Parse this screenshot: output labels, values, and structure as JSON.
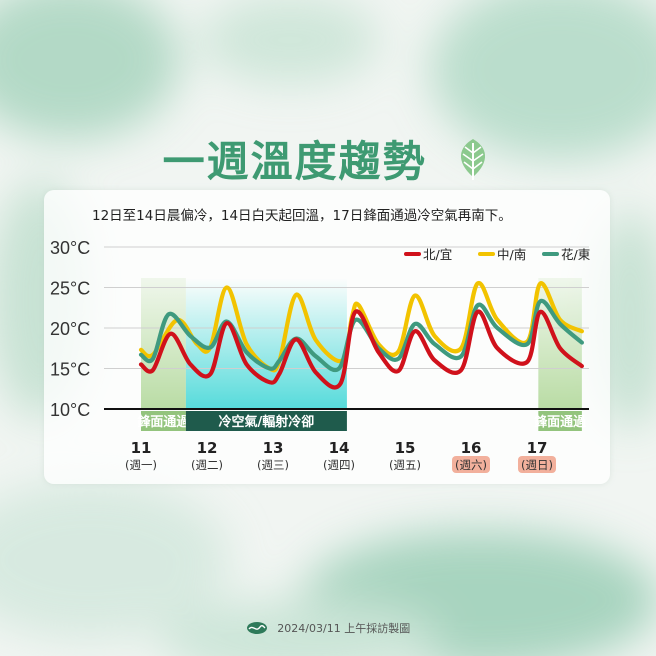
{
  "title": "一週溫度趨勢",
  "subtitle": "12日至14日晨偏冷，14日白天起回溫，17日鋒面通過冷空氣再南下。",
  "footer": {
    "text": "2024/03/11 上午採訪製圖"
  },
  "colors": {
    "north": "#d0111b",
    "central": "#f2c300",
    "east": "#3f9a7f",
    "accent": "#3e9a72",
    "front": "#a9d48f",
    "cold": "#39d5d5",
    "cold_band": "#1f5b4c",
    "weekend": "#f2b09c"
  },
  "bands": [
    {
      "label": "鋒面通過",
      "from": 11,
      "to": 11.68
    },
    {
      "label": "冷空氣/輻射冷卻",
      "from": 11.68,
      "to": 14.12
    },
    {
      "label": "鋒面通過",
      "from": 17.02,
      "to": 17.68
    }
  ],
  "chart_data": {
    "type": "line",
    "ylim": [
      10,
      30
    ],
    "y_ticks": [
      "10°C",
      "15°C",
      "20°C",
      "25°C",
      "30°C"
    ],
    "categories": [
      {
        "day": "11",
        "weekday": "(週一)",
        "weekend": false
      },
      {
        "day": "12",
        "weekday": "(週二)",
        "weekend": false
      },
      {
        "day": "13",
        "weekday": "(週三)",
        "weekend": false
      },
      {
        "day": "14",
        "weekday": "(週四)",
        "weekend": false
      },
      {
        "day": "15",
        "weekday": "(週五)",
        "weekend": false
      },
      {
        "day": "16",
        "weekday": "(週六)",
        "weekend": true
      },
      {
        "day": "17",
        "weekday": "(週日)",
        "weekend": true
      }
    ],
    "series": [
      {
        "name": "中/南",
        "key": "central",
        "points": [
          [
            11,
            17.3
          ],
          [
            11.18,
            16.7
          ],
          [
            11.55,
            21.0
          ],
          [
            11.85,
            18.0
          ],
          [
            12.05,
            17.6
          ],
          [
            12.3,
            25.0
          ],
          [
            12.6,
            18.0
          ],
          [
            12.95,
            15.0
          ],
          [
            13.1,
            16.0
          ],
          [
            13.35,
            24.1
          ],
          [
            13.65,
            18.5
          ],
          [
            14.05,
            16.0
          ],
          [
            14.2,
            21.5
          ],
          [
            14.3,
            22.8
          ],
          [
            14.6,
            18.0
          ],
          [
            14.9,
            17.1
          ],
          [
            15.15,
            24.0
          ],
          [
            15.45,
            19.0
          ],
          [
            15.85,
            17.5
          ],
          [
            16.1,
            25.5
          ],
          [
            16.4,
            21.0
          ],
          [
            16.85,
            18.3
          ],
          [
            17.05,
            25.5
          ],
          [
            17.35,
            21.0
          ],
          [
            17.68,
            19.6
          ]
        ]
      },
      {
        "name": "花/東",
        "key": "east",
        "points": [
          [
            11,
            16.7
          ],
          [
            11.18,
            16.2
          ],
          [
            11.42,
            21.7
          ],
          [
            11.75,
            19.0
          ],
          [
            12.05,
            17.6
          ],
          [
            12.3,
            20.8
          ],
          [
            12.6,
            17.0
          ],
          [
            12.95,
            15.0
          ],
          [
            13.1,
            16.0
          ],
          [
            13.35,
            18.7
          ],
          [
            13.65,
            16.5
          ],
          [
            14.0,
            15.0
          ],
          [
            14.25,
            21.0
          ],
          [
            14.6,
            17.5
          ],
          [
            14.9,
            16.2
          ],
          [
            15.15,
            20.5
          ],
          [
            15.45,
            18.0
          ],
          [
            15.85,
            16.5
          ],
          [
            16.1,
            22.8
          ],
          [
            16.4,
            20.0
          ],
          [
            16.85,
            18.0
          ],
          [
            17.05,
            23.3
          ],
          [
            17.35,
            20.5
          ],
          [
            17.68,
            18.2
          ]
        ]
      },
      {
        "name": "北/宜",
        "key": "north",
        "points": [
          [
            11,
            15.5
          ],
          [
            11.18,
            14.8
          ],
          [
            11.45,
            19.3
          ],
          [
            11.75,
            15.5
          ],
          [
            12.05,
            14.3
          ],
          [
            12.3,
            20.6
          ],
          [
            12.6,
            15.5
          ],
          [
            12.95,
            13.3
          ],
          [
            13.1,
            14.4
          ],
          [
            13.35,
            18.6
          ],
          [
            13.65,
            14.5
          ],
          [
            14.02,
            13.1
          ],
          [
            14.25,
            22.0
          ],
          [
            14.6,
            17.0
          ],
          [
            14.9,
            14.7
          ],
          [
            15.15,
            19.6
          ],
          [
            15.45,
            16.0
          ],
          [
            15.85,
            14.8
          ],
          [
            16.1,
            22.0
          ],
          [
            16.4,
            17.5
          ],
          [
            16.85,
            15.8
          ],
          [
            17.05,
            22.0
          ],
          [
            17.35,
            17.5
          ],
          [
            17.68,
            15.3
          ]
        ]
      }
    ],
    "legend_position": "top-right"
  }
}
